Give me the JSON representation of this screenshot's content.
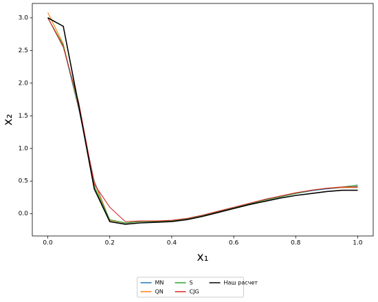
{
  "chart_data": {
    "type": "line",
    "xlabel": "x₁",
    "ylabel": "x₂",
    "x": [
      0,
      0.05,
      0.1,
      0.15,
      0.2,
      0.25,
      0.3,
      0.35,
      0.4,
      0.45,
      0.5,
      0.55,
      0.6,
      0.65,
      0.7,
      0.75,
      0.8,
      0.85,
      0.9,
      0.95,
      1.0
    ],
    "series": [
      {
        "name": "MN",
        "color": "#1f77b4",
        "values": [
          3.0,
          2.57,
          1.6,
          0.5,
          -0.1,
          -0.14,
          -0.12,
          -0.12,
          -0.11,
          -0.08,
          -0.03,
          0.03,
          0.09,
          0.15,
          0.21,
          0.26,
          0.31,
          0.35,
          0.38,
          0.4,
          0.42
        ]
      },
      {
        "name": "QN",
        "color": "#ff7f0e",
        "values": [
          3.08,
          2.6,
          1.62,
          0.48,
          -0.1,
          -0.14,
          -0.12,
          -0.11,
          -0.11,
          -0.08,
          -0.03,
          0.03,
          0.09,
          0.15,
          0.21,
          0.27,
          0.32,
          0.36,
          0.39,
          0.4,
          0.4
        ]
      },
      {
        "name": "S",
        "color": "#2ca02c",
        "values": [
          3.0,
          2.58,
          1.65,
          0.42,
          -0.09,
          -0.14,
          -0.12,
          -0.12,
          -0.11,
          -0.08,
          -0.03,
          0.03,
          0.09,
          0.15,
          0.21,
          0.26,
          0.31,
          0.36,
          0.39,
          0.41,
          0.44
        ]
      },
      {
        "name": "CJG",
        "color": "#d62728",
        "values": [
          3.0,
          2.55,
          1.7,
          0.45,
          0.1,
          -0.12,
          -0.11,
          -0.11,
          -0.1,
          -0.07,
          -0.02,
          0.04,
          0.1,
          0.16,
          0.22,
          0.27,
          0.32,
          0.36,
          0.39,
          0.41,
          0.41
        ]
      },
      {
        "name": "Наш расчет",
        "color": "#000000",
        "values": [
          3.0,
          2.87,
          1.65,
          0.38,
          -0.12,
          -0.16,
          -0.14,
          -0.13,
          -0.12,
          -0.09,
          -0.04,
          0.02,
          0.08,
          0.14,
          0.19,
          0.24,
          0.28,
          0.31,
          0.34,
          0.36,
          0.36
        ]
      }
    ],
    "xlim": [
      -0.05,
      1.05
    ],
    "xticks": [
      {
        "value": 0,
        "label": "0.0"
      },
      0.2,
      0.4,
      0.6,
      0.8,
      {
        "value": 1,
        "label": "1.0"
      }
    ],
    "ylim": [
      -0.34,
      3.22
    ],
    "yticks": [
      {
        "value": 0,
        "label": "0.0"
      },
      0.5,
      {
        "value": 1,
        "label": "1.0"
      },
      1.5,
      {
        "value": 2,
        "label": "2.0"
      },
      2.5,
      {
        "value": 3,
        "label": "3.0"
      }
    ],
    "legend": "lower center"
  }
}
